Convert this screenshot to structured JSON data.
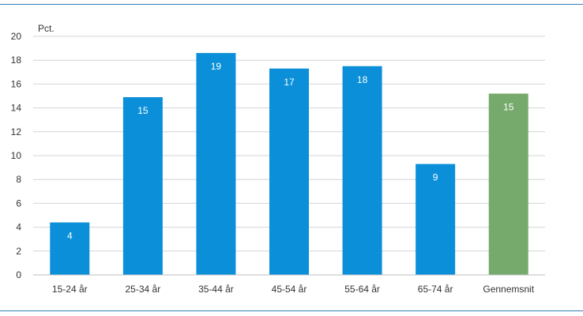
{
  "chart_data": {
    "type": "bar",
    "ylabel": "Pct.",
    "ylim": [
      0,
      20
    ],
    "yticks": [
      0,
      2,
      4,
      6,
      8,
      10,
      12,
      14,
      16,
      18,
      20
    ],
    "categories": [
      "15-24 år",
      "25-34 år",
      "35-44 år",
      "45-54 år",
      "55-64 år",
      "65-74 år",
      "Gennemsnit"
    ],
    "values": [
      4.4,
      14.9,
      18.6,
      17.3,
      17.5,
      9.3,
      15.2
    ],
    "data_labels": [
      "4",
      "15",
      "19",
      "17",
      "18",
      "9",
      "15"
    ],
    "bar_colors": [
      "#0a8fd8",
      "#0a8fd8",
      "#0a8fd8",
      "#0a8fd8",
      "#0a8fd8",
      "#0a8fd8",
      "#76aa6c"
    ],
    "grid": true,
    "legend": "none"
  }
}
